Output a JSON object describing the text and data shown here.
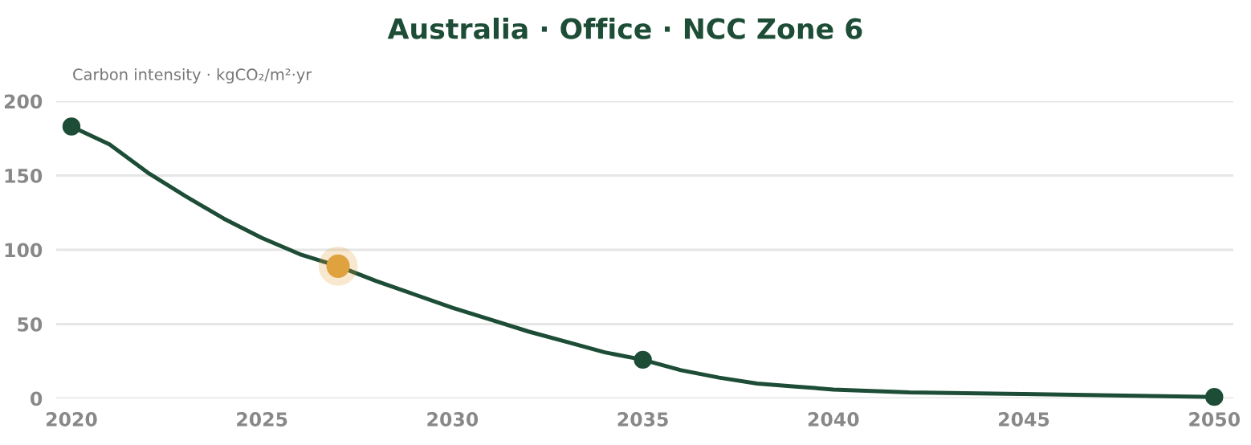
{
  "chart_data": {
    "type": "line",
    "title": "Australia · Office · NCC Zone 6",
    "ylabel": "Carbon intensity · kgCO₂/m²·yr",
    "series": [
      {
        "color": "#1d4d36",
        "marker": "none",
        "x": [
          2020,
          2021,
          2022,
          2023,
          2024,
          2025,
          2026,
          2027,
          2028,
          2029,
          2030,
          2031,
          2032,
          2033,
          2034,
          2035,
          2036,
          2037,
          2038,
          2039,
          2040,
          2042,
          2045,
          2050
        ],
        "values": [
          183,
          171,
          152,
          136,
          121,
          108,
          97,
          89,
          79,
          70,
          61,
          53,
          45,
          38,
          31,
          26,
          19,
          14,
          10,
          8,
          6,
          4,
          3,
          1
        ]
      },
      {
        "type": "scatter",
        "color": "#1d4d36",
        "marker": "circle",
        "x": [
          2020,
          2035,
          2050
        ],
        "values": [
          183,
          26,
          1
        ]
      },
      {
        "type": "scatter",
        "color": "#dfa23f",
        "marker": "circle",
        "x": [
          2027
        ],
        "values": [
          89
        ]
      }
    ],
    "xlim": [
      2019.6,
      2050.5
    ],
    "xticks": [
      2020,
      2025,
      2030,
      2035,
      2040,
      2045,
      2050
    ],
    "ylim": [
      0,
      200
    ],
    "yticks": [
      0,
      50,
      100,
      150,
      200
    ],
    "grid": "y",
    "legend": false
  }
}
